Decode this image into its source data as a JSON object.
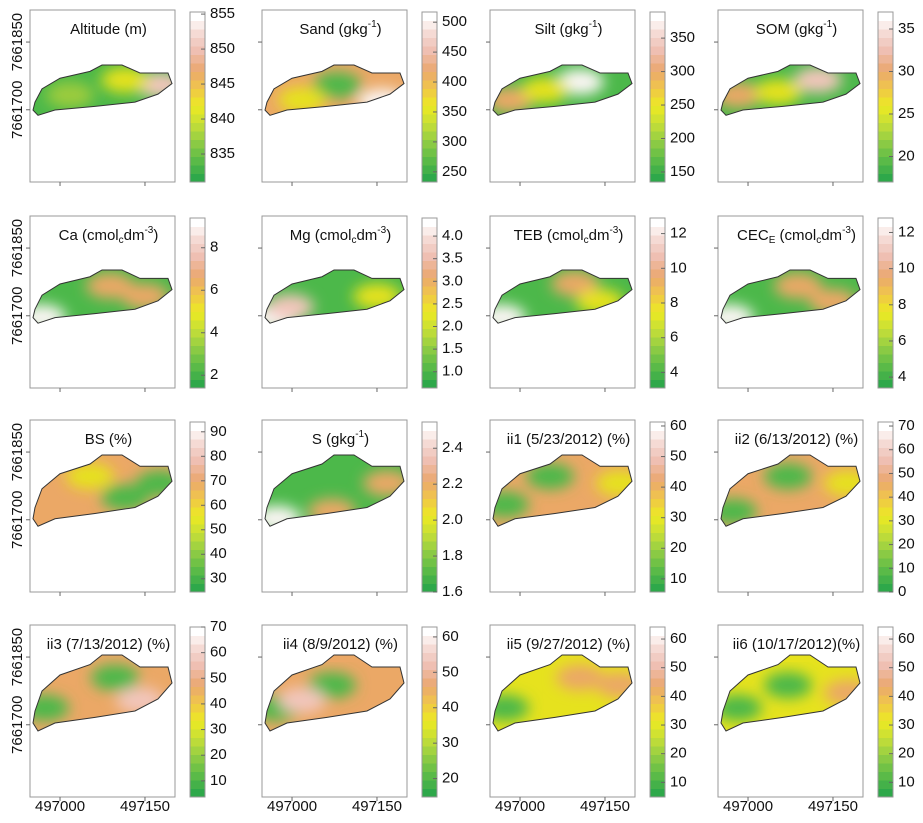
{
  "chart_data": {
    "type": "contour-map",
    "xlim": [
      496947,
      497203
    ],
    "xticks": [
      497000,
      497150
    ],
    "ylim": [
      7661540,
      7661921
    ],
    "yticks": [
      7661700,
      7661850
    ],
    "panels": [
      {
        "title_parts": [
          {
            "text": "Altitude (m)"
          }
        ],
        "clim": [
          831,
          855.3
        ],
        "cticks": [
          835,
          840,
          845,
          850,
          855
        ]
      },
      {
        "title_parts": [
          {
            "text": "Sand (gkg"
          },
          {
            "text": "-1",
            "sup": true
          },
          {
            "text": ")"
          }
        ],
        "clim": [
          233,
          517
        ],
        "cticks": [
          250,
          300,
          350,
          400,
          450,
          500
        ]
      },
      {
        "title_parts": [
          {
            "text": "Silt (gkg"
          },
          {
            "text": "-1",
            "sup": true
          },
          {
            "text": ")"
          }
        ],
        "clim": [
          135,
          389
        ],
        "cticks": [
          150,
          200,
          250,
          300,
          350
        ]
      },
      {
        "title_parts": [
          {
            "text": "SOM (gkg"
          },
          {
            "text": "-1",
            "sup": true
          },
          {
            "text": ")"
          }
        ],
        "clim": [
          17,
          37
        ],
        "cticks": [
          20,
          25,
          30,
          35
        ]
      },
      {
        "title_parts": [
          {
            "text": "Ca (cmol"
          },
          {
            "text": "c",
            "sub": true
          },
          {
            "text": "dm"
          },
          {
            "text": "-3",
            "sup": true
          },
          {
            "text": ")"
          }
        ],
        "clim": [
          1.4,
          9.4
        ],
        "cticks": [
          2,
          4,
          6,
          8
        ]
      },
      {
        "title_parts": [
          {
            "text": "Mg (cmol"
          },
          {
            "text": "c",
            "sub": true
          },
          {
            "text": "dm"
          },
          {
            "text": "-3",
            "sup": true
          },
          {
            "text": ")"
          }
        ],
        "clim": [
          0.64,
          4.4
        ],
        "cticks": [
          {
            "value": 1,
            "label": "1.0"
          },
          1.5,
          {
            "value": 2,
            "label": "2.0"
          },
          2.5,
          {
            "value": 3,
            "label": "3.0"
          },
          3.5,
          {
            "value": 4,
            "label": "4.0"
          }
        ]
      },
      {
        "title_parts": [
          {
            "text": "TEB (cmol"
          },
          {
            "text": "c",
            "sub": true
          },
          {
            "text": "dm"
          },
          {
            "text": "-3",
            "sup": true
          },
          {
            "text": ")"
          }
        ],
        "clim": [
          3.1,
          12.9
        ],
        "cticks": [
          4,
          6,
          8,
          10,
          12
        ]
      },
      {
        "title_parts": [
          {
            "text": "CEC"
          },
          {
            "text": "E",
            "sub": true
          },
          {
            "text": " (cmol"
          },
          {
            "text": "c",
            "sub": true
          },
          {
            "text": "dm"
          },
          {
            "text": "-3",
            "sup": true
          },
          {
            "text": ")"
          }
        ],
        "clim": [
          3.4,
          12.8
        ],
        "cticks": [
          4,
          6,
          8,
          10,
          12
        ]
      },
      {
        "title_parts": [
          {
            "text": "BS (%)"
          }
        ],
        "clim": [
          24.6,
          94
        ],
        "cticks": [
          30,
          40,
          50,
          60,
          70,
          80,
          90
        ]
      },
      {
        "title_parts": [
          {
            "text": "S (gkg"
          },
          {
            "text": "-1",
            "sup": true
          },
          {
            "text": ")"
          }
        ],
        "clim": [
          1.6,
          2.546
        ],
        "cticks": [
          1.6,
          1.8,
          {
            "value": 2,
            "label": "2.0"
          },
          2.2,
          2.4
        ]
      },
      {
        "title_parts": [
          {
            "text": "ii1 (5/23/2012) (%)"
          }
        ],
        "clim": [
          5.7,
          61.3
        ],
        "cticks": [
          10,
          20,
          30,
          40,
          50,
          60
        ]
      },
      {
        "title_parts": [
          {
            "text": "ii2 (6/13/2012) (%)"
          }
        ],
        "clim": [
          0,
          71.7
        ],
        "cticks": [
          0,
          10,
          20,
          30,
          40,
          50,
          60,
          70
        ]
      },
      {
        "title_parts": [
          {
            "text": "ii3 (7/13/2012) (%)"
          }
        ],
        "clim": [
          3.7,
          70
        ],
        "cticks": [
          10,
          20,
          30,
          40,
          50,
          60,
          70
        ]
      },
      {
        "title_parts": [
          {
            "text": "ii4 (8/9/2012) (%)"
          }
        ],
        "clim": [
          14.8,
          62.8
        ],
        "cticks": [
          20,
          30,
          40,
          50,
          60
        ]
      },
      {
        "title_parts": [
          {
            "text": "ii5 (9/27/2012) (%)"
          }
        ],
        "clim": [
          4.9,
          64.2
        ],
        "cticks": [
          10,
          20,
          30,
          40,
          50,
          60
        ]
      },
      {
        "title_parts": [
          {
            "text": "ii6 (10/17/2012)(%)"
          }
        ],
        "clim": [
          4.9,
          64.2
        ],
        "cticks": [
          10,
          20,
          30,
          40,
          50,
          60
        ]
      }
    ]
  }
}
